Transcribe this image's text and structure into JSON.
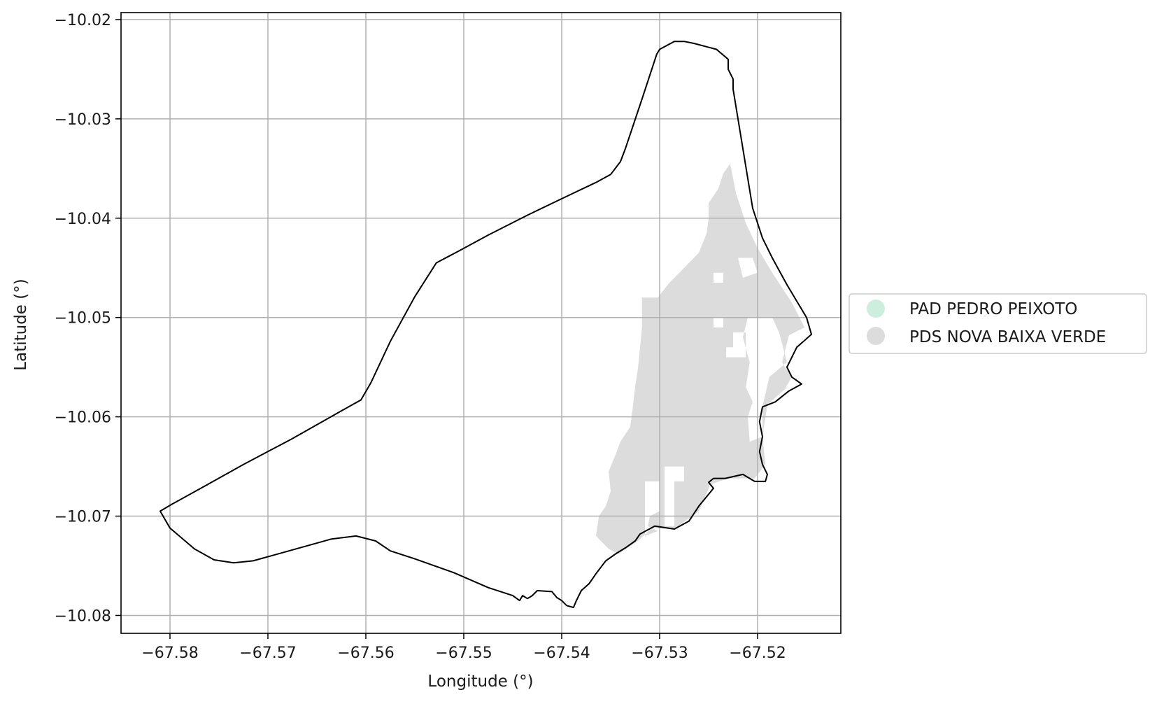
{
  "chart_data": {
    "type": "map",
    "xlabel": "Longitude (°)",
    "ylabel": "Latitude (°)",
    "xlim": [
      -67.585,
      -67.5115
    ],
    "ylim": [
      -10.0818,
      -10.0193
    ],
    "x_ticks": [
      -67.58,
      -67.57,
      -67.56,
      -67.55,
      -67.54,
      -67.53,
      -67.52
    ],
    "y_ticks": [
      -10.02,
      -10.03,
      -10.04,
      -10.05,
      -10.06,
      -10.07,
      -10.08
    ],
    "x_tick_labels": [
      "−67.58",
      "−67.57",
      "−67.56",
      "−67.55",
      "−67.54",
      "−67.53",
      "−67.52"
    ],
    "y_tick_labels": [
      "−10.02",
      "−10.03",
      "−10.04",
      "−10.05",
      "−10.06",
      "−10.07",
      "−10.08"
    ],
    "grid": true,
    "legend_position": "right",
    "legend": [
      {
        "label": "PAD PEDRO PEIXOTO",
        "color": "#cdeedd"
      },
      {
        "label": "PDS NOVA BAIXA VERDE",
        "color": "#dcdcdc"
      }
    ],
    "boundary_outline": [
      [
        -67.581,
        -10.0695
      ],
      [
        -67.5798,
        -10.0688
      ],
      [
        -67.5765,
        -10.067
      ],
      [
        -67.5725,
        -10.0648
      ],
      [
        -67.5675,
        -10.0622
      ],
      [
        -67.5625,
        -10.0594
      ],
      [
        -67.5605,
        -10.0583
      ],
      [
        -67.5595,
        -10.0566
      ],
      [
        -67.5575,
        -10.0524
      ],
      [
        -67.555,
        -10.0479
      ],
      [
        -67.5528,
        -10.0445
      ],
      [
        -67.5505,
        -10.0433
      ],
      [
        -67.5475,
        -10.0417
      ],
      [
        -67.5435,
        -10.0397
      ],
      [
        -67.5395,
        -10.0378
      ],
      [
        -67.5365,
        -10.0364
      ],
      [
        -67.535,
        -10.0356
      ],
      [
        -67.534,
        -10.0343
      ],
      [
        -67.5335,
        -10.033
      ],
      [
        -67.5318,
        -10.028
      ],
      [
        -67.5303,
        -10.0235
      ],
      [
        -67.53,
        -10.023
      ],
      [
        -67.5285,
        -10.0222
      ],
      [
        -67.5275,
        -10.0222
      ],
      [
        -67.5265,
        -10.0224
      ],
      [
        -67.5242,
        -10.023
      ],
      [
        -67.523,
        -10.024
      ],
      [
        -67.523,
        -10.025
      ],
      [
        -67.5225,
        -10.026
      ],
      [
        -67.5225,
        -10.027
      ],
      [
        -67.522,
        -10.03
      ],
      [
        -67.5215,
        -10.033
      ],
      [
        -67.521,
        -10.036
      ],
      [
        -67.5205,
        -10.039
      ],
      [
        -67.5195,
        -10.042
      ],
      [
        -67.5185,
        -10.044
      ],
      [
        -67.517,
        -10.0467
      ],
      [
        -67.515,
        -10.05
      ],
      [
        -67.5145,
        -10.0517
      ],
      [
        -67.516,
        -10.053
      ],
      [
        -67.517,
        -10.055
      ],
      [
        -67.5165,
        -10.056
      ],
      [
        -67.5155,
        -10.0567
      ],
      [
        -67.5168,
        -10.0574
      ],
      [
        -67.5182,
        -10.0585
      ],
      [
        -67.5195,
        -10.059
      ],
      [
        -67.5198,
        -10.0605
      ],
      [
        -67.5195,
        -10.062
      ],
      [
        -67.5198,
        -10.0635
      ],
      [
        -67.5195,
        -10.0648
      ],
      [
        -67.519,
        -10.0658
      ],
      [
        -67.5192,
        -10.0665
      ],
      [
        -67.5203,
        -10.0665
      ],
      [
        -67.5215,
        -10.0658
      ],
      [
        -67.5233,
        -10.0662
      ],
      [
        -67.5245,
        -10.0662
      ],
      [
        -67.525,
        -10.0666
      ],
      [
        -67.5245,
        -10.0672
      ],
      [
        -67.526,
        -10.069
      ],
      [
        -67.527,
        -10.0705
      ],
      [
        -67.5285,
        -10.0713
      ],
      [
        -67.5305,
        -10.071
      ],
      [
        -67.532,
        -10.0718
      ],
      [
        -67.5325,
        -10.0725
      ],
      [
        -67.5335,
        -10.0732
      ],
      [
        -67.5345,
        -10.0738
      ],
      [
        -67.5355,
        -10.0745
      ],
      [
        -67.5365,
        -10.0758
      ],
      [
        -67.5372,
        -10.0768
      ],
      [
        -67.538,
        -10.0775
      ],
      [
        -67.5385,
        -10.0785
      ],
      [
        -67.5388,
        -10.0792
      ],
      [
        -67.5395,
        -10.079
      ],
      [
        -67.54,
        -10.0785
      ],
      [
        -67.5405,
        -10.0782
      ],
      [
        -67.541,
        -10.0776
      ],
      [
        -67.5425,
        -10.0775
      ],
      [
        -67.543,
        -10.078
      ],
      [
        -67.5435,
        -10.0783
      ],
      [
        -67.544,
        -10.078
      ],
      [
        -67.5443,
        -10.0785
      ],
      [
        -67.545,
        -10.078
      ],
      [
        -67.5475,
        -10.0772
      ],
      [
        -67.551,
        -10.0757
      ],
      [
        -67.555,
        -10.0743
      ],
      [
        -67.5575,
        -10.0735
      ],
      [
        -67.559,
        -10.0725
      ],
      [
        -67.561,
        -10.072
      ],
      [
        -67.5635,
        -10.0723
      ],
      [
        -67.5675,
        -10.0734
      ],
      [
        -67.5715,
        -10.0745
      ],
      [
        -67.5735,
        -10.0747
      ],
      [
        -67.5755,
        -10.0744
      ],
      [
        -67.5775,
        -10.0733
      ],
      [
        -67.58,
        -10.0712
      ],
      [
        -67.581,
        -10.0695
      ]
    ],
    "polygons": [
      {
        "name": "PDS NOVA BAIXA VERDE",
        "fill": "#dcdcdc",
        "outer": [
          [
            -67.5228,
            -10.0345
          ],
          [
            -67.5222,
            -10.0375
          ],
          [
            -67.5212,
            -10.0405
          ],
          [
            -67.52,
            -10.043
          ],
          [
            -67.5185,
            -10.0455
          ],
          [
            -67.5165,
            -10.0485
          ],
          [
            -67.5152,
            -10.051
          ],
          [
            -67.5168,
            -10.0518
          ],
          [
            -67.5175,
            -10.0545
          ],
          [
            -67.5165,
            -10.056
          ],
          [
            -67.5172,
            -10.0572
          ],
          [
            -67.519,
            -10.0588
          ],
          [
            -67.5195,
            -10.062
          ],
          [
            -67.5192,
            -10.0648
          ],
          [
            -67.5203,
            -10.0662
          ],
          [
            -67.523,
            -10.0662
          ],
          [
            -67.5248,
            -10.0668
          ],
          [
            -67.526,
            -10.0695
          ],
          [
            -67.5285,
            -10.0713
          ],
          [
            -67.5308,
            -10.0712
          ],
          [
            -67.5322,
            -10.0725
          ],
          [
            -67.5342,
            -10.0738
          ],
          [
            -67.5352,
            -10.0733
          ],
          [
            -67.5365,
            -10.072
          ],
          [
            -67.5362,
            -10.07
          ],
          [
            -67.5355,
            -10.069
          ],
          [
            -67.535,
            -10.0675
          ],
          [
            -67.5352,
            -10.0655
          ],
          [
            -67.5345,
            -10.0638
          ],
          [
            -67.534,
            -10.0625
          ],
          [
            -67.533,
            -10.061
          ],
          [
            -67.5328,
            -10.0595
          ],
          [
            -67.5325,
            -10.057
          ],
          [
            -67.5322,
            -10.055
          ],
          [
            -67.532,
            -10.053
          ],
          [
            -67.5318,
            -10.051
          ],
          [
            -67.5318,
            -10.049
          ],
          [
            -67.5318,
            -10.048
          ],
          [
            -67.5302,
            -10.048
          ],
          [
            -67.529,
            -10.0465
          ],
          [
            -67.5275,
            -10.045
          ],
          [
            -67.526,
            -10.0435
          ],
          [
            -67.5252,
            -10.0415
          ],
          [
            -67.525,
            -10.04
          ],
          [
            -67.525,
            -10.0385
          ],
          [
            -67.524,
            -10.037
          ],
          [
            -67.5235,
            -10.0355
          ]
        ],
        "holes": [
          [
            [
              -67.5245,
              -10.05
            ],
            [
              -67.5235,
              -10.05
            ],
            [
              -67.5235,
              -10.051
            ],
            [
              -67.5245,
              -10.051
            ]
          ],
          [
            [
              -67.5225,
              -10.0515
            ],
            [
              -67.5212,
              -10.0515
            ],
            [
              -67.5212,
              -10.054
            ],
            [
              -67.5232,
              -10.054
            ],
            [
              -67.5232,
              -10.053
            ],
            [
              -67.5225,
              -10.053
            ]
          ],
          [
            [
              -67.521,
              -10.05
            ],
            [
              -67.5185,
              -10.05
            ],
            [
              -67.5178,
              -10.0515
            ],
            [
              -67.517,
              -10.0545
            ],
            [
              -67.5188,
              -10.056
            ],
            [
              -67.5195,
              -10.059
            ],
            [
              -67.5195,
              -10.062
            ],
            [
              -67.5208,
              -10.0625
            ],
            [
              -67.521,
              -10.06
            ],
            [
              -67.5205,
              -10.0585
            ],
            [
              -67.5212,
              -10.057
            ],
            [
              -67.5208,
              -10.0545
            ],
            [
              -67.5215,
              -10.052
            ]
          ],
          [
            [
              -67.522,
              -10.044
            ],
            [
              -67.5205,
              -10.044
            ],
            [
              -67.52,
              -10.0455
            ],
            [
              -67.5215,
              -10.046
            ]
          ],
          [
            [
              -67.5245,
              -10.0455
            ],
            [
              -67.5235,
              -10.0455
            ],
            [
              -67.5235,
              -10.0465
            ],
            [
              -67.5245,
              -10.0465
            ]
          ],
          [
            [
              -67.5295,
              -10.065
            ],
            [
              -67.5275,
              -10.065
            ],
            [
              -67.5275,
              -10.0665
            ],
            [
              -67.5285,
              -10.0665
            ],
            [
              -67.5285,
              -10.071
            ],
            [
              -67.5295,
              -10.071
            ]
          ],
          [
            [
              -67.5315,
              -10.0665
            ],
            [
              -67.53,
              -10.0665
            ],
            [
              -67.53,
              -10.0695
            ],
            [
              -67.531,
              -10.07
            ],
            [
              -67.5312,
              -10.071
            ],
            [
              -67.5302,
              -10.0715
            ],
            [
              -67.5315,
              -10.072
            ]
          ]
        ]
      }
    ]
  }
}
